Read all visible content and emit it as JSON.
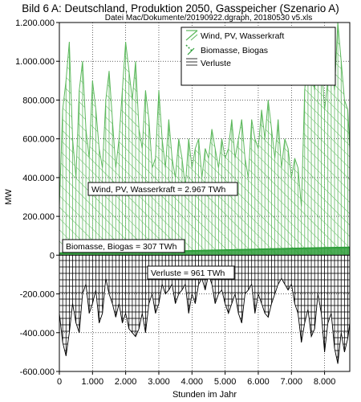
{
  "title": "Bild 6 A: Deutschland, Produktion 2050, Gasspeicher (Szenario A)",
  "subtitle": "Datei Mac/Dokumente/20190922.dgraph, 20180530 v5.xls",
  "colors": {
    "wind": "#5cb85c",
    "bio": "#2e9e3a",
    "loss": "#000000"
  },
  "chart_data": {
    "type": "area",
    "xlabel": "Stunden im Jahr",
    "ylabel": "MW",
    "xlim": [
      0,
      8760
    ],
    "ylim": [
      -600000,
      1200000
    ],
    "x_ticks": [
      0,
      1000,
      2000,
      3000,
      4000,
      5000,
      6000,
      7000,
      8000
    ],
    "x_tick_labels": [
      "0",
      "1.000",
      "2.000",
      "3.000",
      "4.000",
      "5.000",
      "6.000",
      "7.000",
      "8.000"
    ],
    "y_ticks": [
      -600000,
      -400000,
      -200000,
      0,
      200000,
      400000,
      600000,
      800000,
      1000000,
      1200000
    ],
    "y_tick_labels": [
      "-600.000",
      "-400.000",
      "-200.000",
      "0",
      "200.000",
      "400.000",
      "600.000",
      "800.000",
      "1.000.000",
      "1.200.000"
    ],
    "grid": true,
    "legend_position": "top-right",
    "series": [
      {
        "name": "Wind, PV, Wasserkraft",
        "color": "#5cb85c",
        "x": [
          0,
          100,
          200,
          300,
          400,
          500,
          600,
          700,
          800,
          900,
          1000,
          1100,
          1200,
          1300,
          1400,
          1500,
          1600,
          1700,
          1800,
          1900,
          2000,
          2100,
          2200,
          2300,
          2400,
          2500,
          2600,
          2700,
          2800,
          2900,
          3000,
          3100,
          3200,
          3300,
          3400,
          3500,
          3600,
          3700,
          3800,
          3900,
          4000,
          4100,
          4200,
          4300,
          4400,
          4500,
          4600,
          4700,
          4800,
          4900,
          5000,
          5100,
          5200,
          5300,
          5400,
          5500,
          5600,
          5700,
          5800,
          5900,
          6000,
          6100,
          6200,
          6300,
          6400,
          6500,
          6600,
          6700,
          6800,
          6900,
          7000,
          7100,
          7200,
          7300,
          7400,
          7500,
          7600,
          7700,
          7800,
          7900,
          8000,
          8100,
          8200,
          8300,
          8400,
          8500,
          8600,
          8700,
          8760
        ],
        "y": [
          250000,
          750000,
          900000,
          1100000,
          600000,
          400000,
          850000,
          1000000,
          650000,
          500000,
          900000,
          750000,
          550000,
          450000,
          800000,
          950000,
          700000,
          450000,
          600000,
          850000,
          1100000,
          950000,
          800000,
          1000000,
          650000,
          550000,
          850000,
          700000,
          450000,
          500000,
          850000,
          600000,
          450000,
          700000,
          500000,
          400000,
          600000,
          500000,
          350000,
          600000,
          450000,
          550000,
          600000,
          400000,
          550000,
          500000,
          650000,
          550000,
          450000,
          600000,
          500000,
          550000,
          700000,
          500000,
          600000,
          700000,
          500000,
          400000,
          700000,
          600000,
          550000,
          750000,
          600000,
          800000,
          650000,
          500000,
          700000,
          450000,
          600000,
          550000,
          400000,
          500000,
          450000,
          250000,
          850000,
          1050000,
          1000000,
          850000,
          1150000,
          1000000,
          750000,
          900000,
          1050000,
          850000,
          1200000,
          1000000,
          800000,
          750000,
          550000
        ]
      },
      {
        "name": "Biomasse, Biogas",
        "color": "#2e9e3a",
        "x": [
          0,
          1000,
          2000,
          3000,
          4000,
          5000,
          6000,
          7000,
          8000,
          8760
        ],
        "y": [
          10000,
          12000,
          14000,
          18000,
          22000,
          26000,
          30000,
          34000,
          38000,
          40000
        ]
      },
      {
        "name": "Verluste",
        "color": "#000000",
        "x": [
          0,
          100,
          200,
          300,
          400,
          500,
          600,
          700,
          800,
          900,
          1000,
          1100,
          1200,
          1300,
          1400,
          1500,
          1600,
          1700,
          1800,
          1900,
          2000,
          2100,
          2200,
          2300,
          2400,
          2500,
          2600,
          2700,
          2800,
          2900,
          3000,
          3100,
          3200,
          3300,
          3400,
          3500,
          3600,
          3700,
          3800,
          3900,
          4000,
          4100,
          4200,
          4300,
          4400,
          4500,
          4600,
          4700,
          4800,
          4900,
          5000,
          5100,
          5200,
          5300,
          5400,
          5500,
          5600,
          5700,
          5800,
          5900,
          6000,
          6100,
          6200,
          6300,
          6400,
          6500,
          6600,
          6700,
          6800,
          6900,
          7000,
          7100,
          7200,
          7300,
          7400,
          7500,
          7600,
          7700,
          7800,
          7900,
          8000,
          8100,
          8200,
          8300,
          8400,
          8500,
          8600,
          8700,
          8760
        ],
        "y": [
          -300000,
          -450000,
          -520000,
          -400000,
          -250000,
          -350000,
          -400000,
          -200000,
          -150000,
          -300000,
          -250000,
          -180000,
          -350000,
          -300000,
          -120000,
          -200000,
          -250000,
          -320000,
          -250000,
          -350000,
          -300000,
          -380000,
          -400000,
          -420000,
          -380000,
          -300000,
          -400000,
          -250000,
          -200000,
          -300000,
          -250000,
          -150000,
          -200000,
          -180000,
          -150000,
          -250000,
          -200000,
          -180000,
          -150000,
          -300000,
          -200000,
          -250000,
          -150000,
          -120000,
          -180000,
          -100000,
          -150000,
          -250000,
          -200000,
          -180000,
          -250000,
          -300000,
          -250000,
          -200000,
          -300000,
          -350000,
          -200000,
          -180000,
          -150000,
          -300000,
          -200000,
          -250000,
          -300000,
          -320000,
          -250000,
          -200000,
          -150000,
          -120000,
          -150000,
          -180000,
          -150000,
          -250000,
          -300000,
          -450000,
          -350000,
          -280000,
          -420000,
          -380000,
          -200000,
          -300000,
          -500000,
          -350000,
          -300000,
          -480000,
          -560000,
          -400000,
          -500000,
          -430000,
          -350000
        ]
      }
    ],
    "annotations": [
      {
        "text": "Wind, PV, Wasserkraft = 2.967 TWh"
      },
      {
        "text": "Biomasse, Biogas = 307 TWh"
      },
      {
        "text": "Verluste = 961 TWh"
      }
    ]
  }
}
